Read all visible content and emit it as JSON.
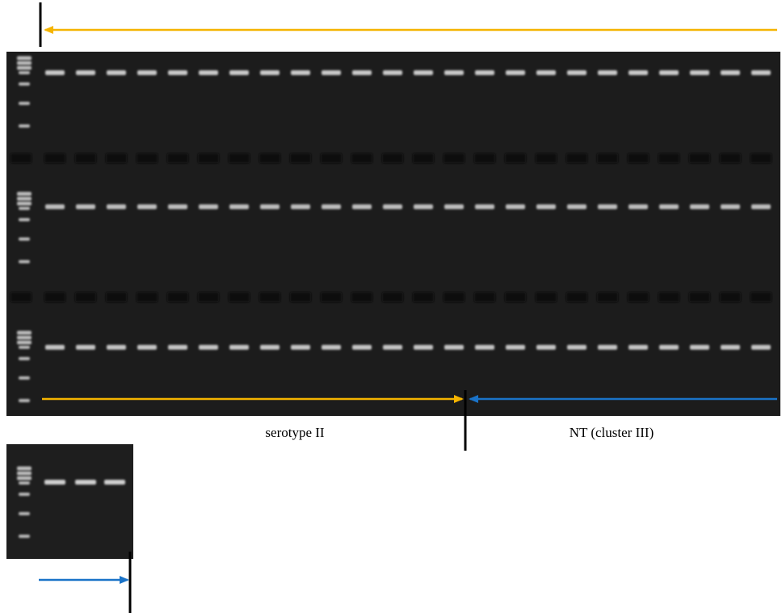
{
  "labels": {
    "left_group": "serotype II",
    "right_group": "NT (cluster III)"
  }
}
